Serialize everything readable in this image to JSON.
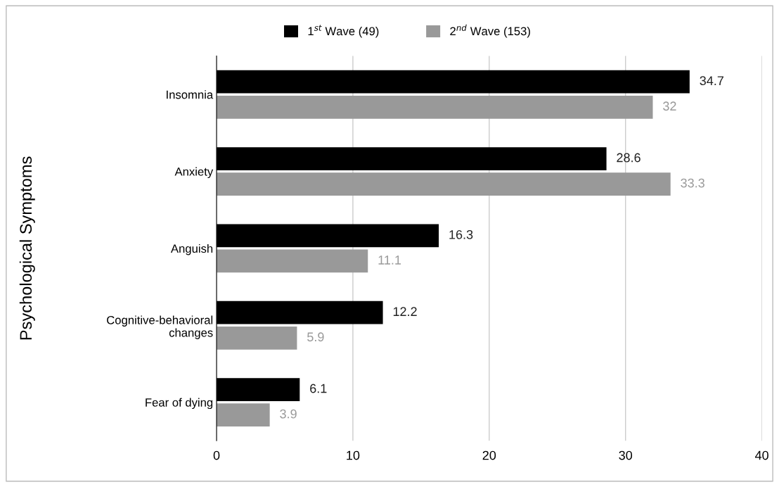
{
  "chart_data": {
    "type": "bar",
    "orientation": "horizontal",
    "ylabel": "Psychological Symptoms",
    "categories": [
      "Insomnia",
      "Anxiety",
      "Anguish",
      "Cognitive-behavioral\nchanges",
      "Fear of dying"
    ],
    "series": [
      {
        "name": "1$^{st}$ Wave (49)",
        "color": "#000000",
        "values": [
          34.7,
          28.6,
          16.3,
          12.2,
          6.1
        ]
      },
      {
        "name": "2$^{nd}$ Wave (153)",
        "color": "#999999",
        "values": [
          32,
          33.3,
          11.1,
          5.9,
          3.9
        ]
      }
    ],
    "xlim": [
      0,
      40
    ],
    "xticks": [
      0,
      10,
      20,
      30,
      40
    ],
    "grid": "x",
    "legend": "top",
    "data_labels": true
  }
}
